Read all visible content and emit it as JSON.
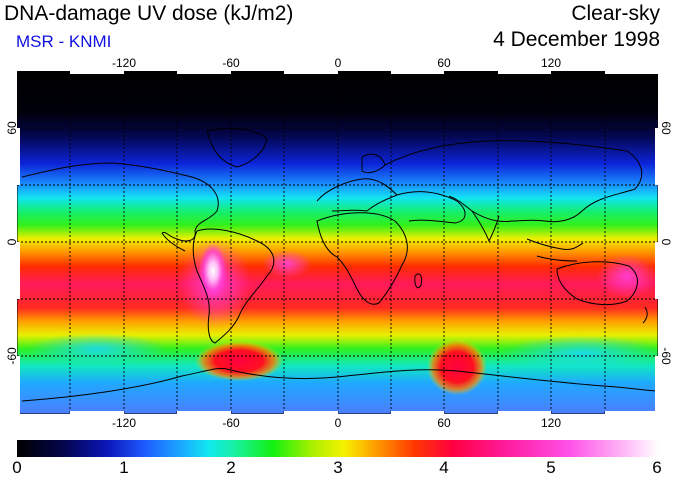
{
  "header": {
    "title": "DNA-damage UV dose (kJ/m2)",
    "subtitle": "MSR - KNMI",
    "condition": "Clear-sky",
    "date": "4 December 1998"
  },
  "map": {
    "lon_top_labels": [
      "-120",
      "-60",
      "0",
      "60",
      "120"
    ],
    "lon_bottom_labels": [
      "-120",
      "-60",
      "0",
      "60",
      "120"
    ],
    "lat_left_labels": [
      "60",
      "0",
      "-60"
    ],
    "lat_right_labels": [
      "60",
      "0",
      "-60"
    ],
    "lon_range": [
      -180,
      180
    ],
    "lat_range": [
      -90,
      90
    ]
  },
  "colorbar": {
    "labels": [
      "0",
      "1",
      "2",
      "3",
      "4",
      "5",
      "6"
    ],
    "min": 0,
    "max": 6
  }
}
